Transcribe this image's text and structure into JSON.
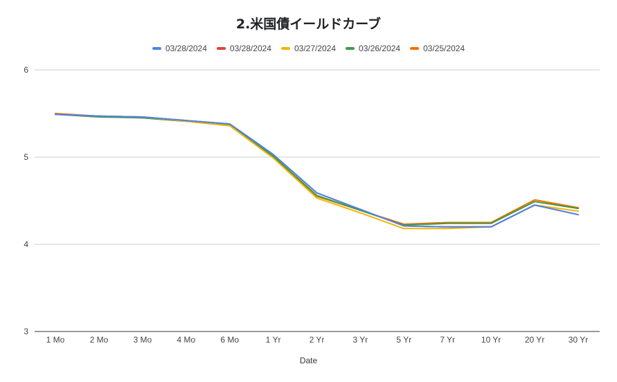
{
  "chart_data": {
    "type": "line",
    "title": "2.米国債イールドカーブ",
    "xlabel": "Date",
    "ylabel": "",
    "ylim": [
      3,
      6
    ],
    "yticks": [
      3,
      4,
      5,
      6
    ],
    "grid": true,
    "legend_position": "top",
    "categories": [
      "1 Mo",
      "2 Mo",
      "3 Mo",
      "4 Mo",
      "6 Mo",
      "1 Yr",
      "2 Yr",
      "3 Yr",
      "5 Yr",
      "7 Yr",
      "10 Yr",
      "20 Yr",
      "30 Yr"
    ],
    "series": [
      {
        "name": "03/28/2024",
        "color": "#4a86e8",
        "values": [
          5.49,
          5.47,
          5.46,
          5.42,
          5.38,
          5.03,
          4.59,
          4.4,
          4.21,
          4.2,
          4.2,
          4.45,
          4.34
        ]
      },
      {
        "name": "03/28/2024",
        "color": "#dc4437",
        "values": [
          5.49,
          5.47,
          5.46,
          5.42,
          5.38,
          5.03,
          4.59,
          4.4,
          4.21,
          4.2,
          4.2,
          4.45,
          4.34
        ]
      },
      {
        "name": "03/27/2024",
        "color": "#f4b400",
        "values": [
          5.49,
          5.47,
          5.46,
          5.41,
          5.36,
          4.99,
          4.53,
          4.36,
          4.18,
          4.18,
          4.2,
          4.45,
          4.38
        ]
      },
      {
        "name": "03/26/2024",
        "color": "#3f9a47",
        "values": [
          5.49,
          5.46,
          5.45,
          5.41,
          5.37,
          5.01,
          4.56,
          4.39,
          4.22,
          4.24,
          4.24,
          4.49,
          4.41
        ]
      },
      {
        "name": "03/25/2024",
        "color": "#f56f00",
        "values": [
          5.5,
          5.47,
          5.45,
          5.41,
          5.36,
          5.0,
          4.55,
          4.39,
          4.23,
          4.25,
          4.25,
          4.51,
          4.42
        ]
      }
    ]
  }
}
